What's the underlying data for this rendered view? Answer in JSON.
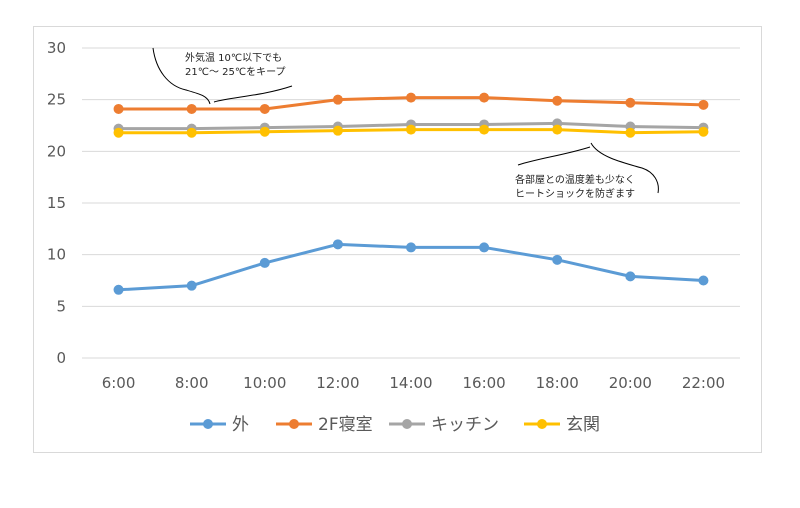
{
  "chart_data": {
    "type": "line",
    "categories": [
      "6:00",
      "8:00",
      "10:00",
      "12:00",
      "14:00",
      "16:00",
      "18:00",
      "20:00",
      "22:00"
    ],
    "ylim": [
      0,
      30
    ],
    "yticks": [
      0,
      5,
      10,
      15,
      20,
      25,
      30
    ],
    "grid": "horizontal",
    "legend_position": "bottom",
    "series": [
      {
        "name": "外",
        "color": "#5b9bd5",
        "values": [
          6.6,
          7.0,
          9.2,
          11.0,
          10.7,
          10.7,
          9.5,
          7.9,
          7.5
        ]
      },
      {
        "name": "2F寝室",
        "color": "#ed7d31",
        "values": [
          24.1,
          24.1,
          24.1,
          25.0,
          25.2,
          25.2,
          24.9,
          24.7,
          24.5
        ]
      },
      {
        "name": "キッチン",
        "color": "#a5a5a5",
        "values": [
          22.2,
          22.2,
          22.3,
          22.4,
          22.6,
          22.6,
          22.7,
          22.4,
          22.3
        ]
      },
      {
        "name": "玄関",
        "color": "#ffc000",
        "values": [
          21.8,
          21.8,
          21.9,
          22.0,
          22.1,
          22.1,
          22.1,
          21.8,
          21.9
        ]
      }
    ],
    "annotations": [
      {
        "lines": [
          "外気温 10℃以下でも",
          "21℃～ 25℃をキープ"
        ]
      },
      {
        "lines": [
          "各部屋との温度差も少なく",
          "ヒートショックを防ぎます"
        ]
      }
    ]
  }
}
